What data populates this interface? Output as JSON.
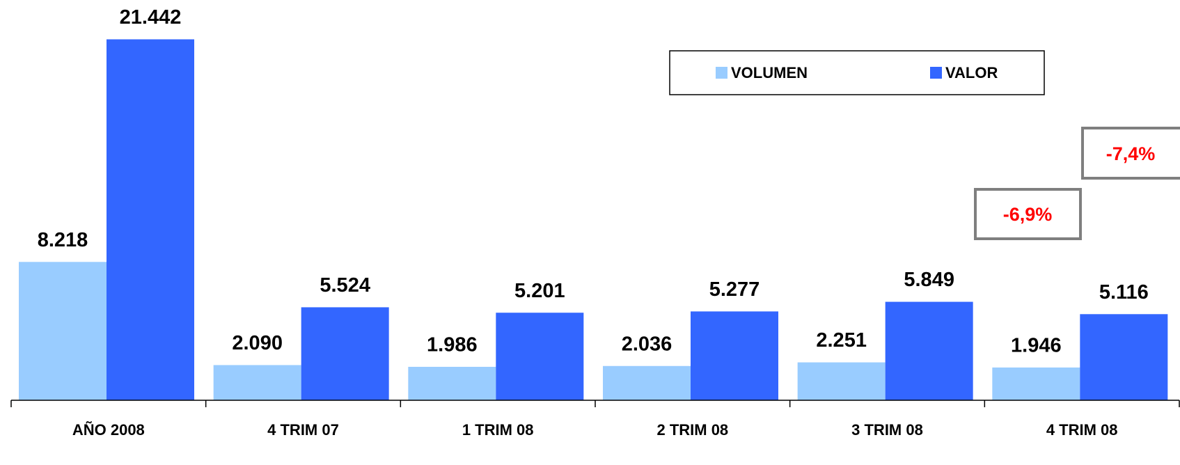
{
  "chart_data": {
    "type": "bar",
    "categories": [
      "AÑO 2008",
      "4 TRIM 07",
      "1 TRIM 08",
      "2 TRIM 08",
      "3 TRIM 08",
      "4 TRIM 08"
    ],
    "series": [
      {
        "name": "VOLUMEN",
        "color": "#99ccff",
        "values": [
          8218,
          2090,
          1986,
          2036,
          2251,
          1946
        ],
        "value_labels": [
          "8.218",
          "2.090",
          "1.986",
          "2.036",
          "2.251",
          "1.946"
        ]
      },
      {
        "name": "VALOR",
        "color": "#3366ff",
        "values": [
          21442,
          5524,
          5201,
          5277,
          5849,
          5116
        ],
        "value_labels": [
          "21.442",
          "5.524",
          "5.201",
          "5.277",
          "5.849",
          "5.116"
        ]
      }
    ],
    "ylim": [
      0,
      22000
    ],
    "annotations": [
      "-6,9%",
      "-7,4%"
    ]
  }
}
